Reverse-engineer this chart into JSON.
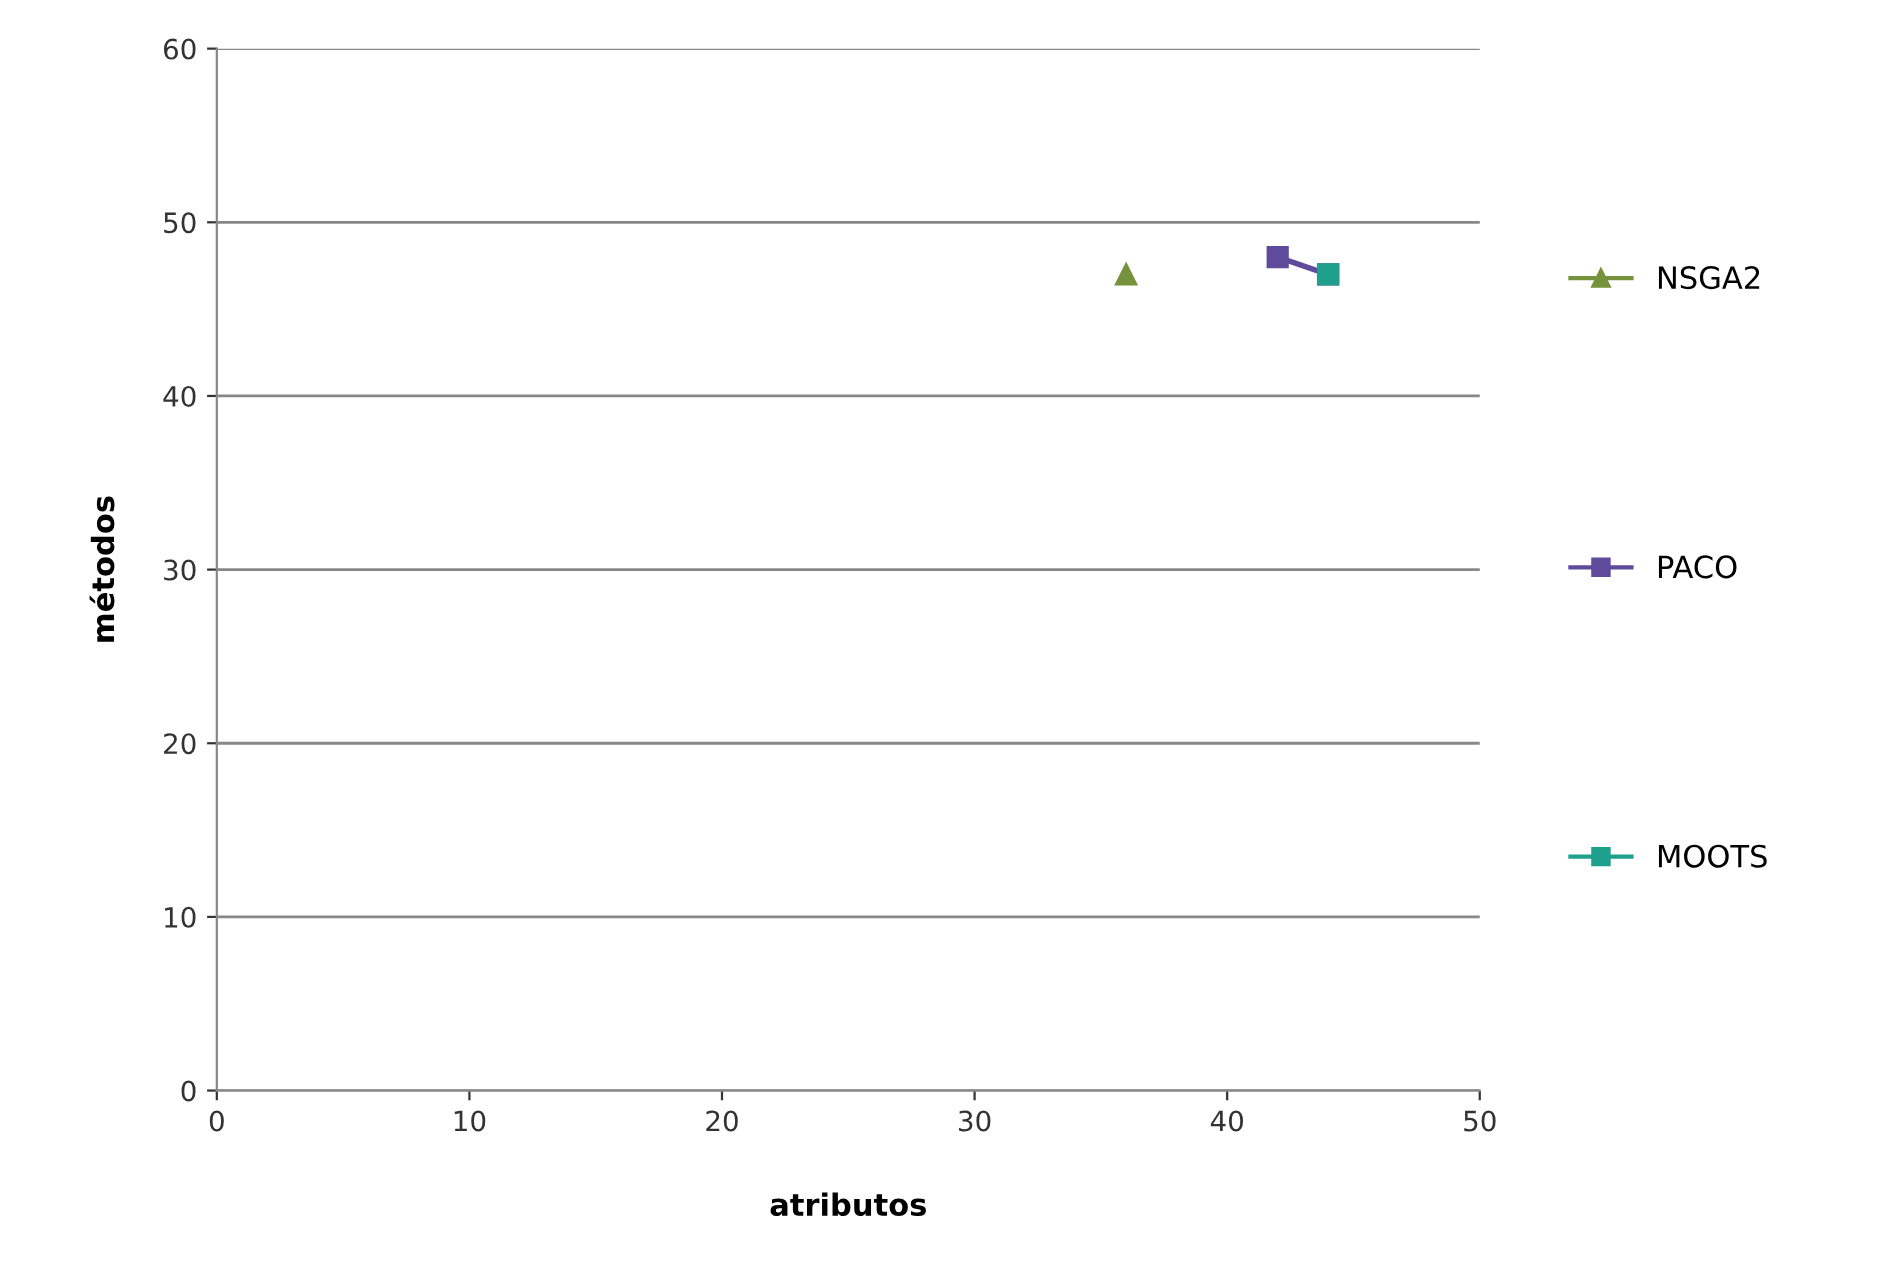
{
  "chart_data": {
    "type": "scatter",
    "xlabel": "atributos",
    "ylabel": "métodos",
    "series": [
      {
        "name": "NSGA2",
        "color": "#76923c",
        "marker": "triangle",
        "x": [
          36
        ],
        "values": [
          47
        ]
      },
      {
        "name": "PACO",
        "color": "#604a9b",
        "marker": "square",
        "type": "line",
        "x": [
          42,
          44
        ],
        "values": [
          48,
          47
        ]
      },
      {
        "name": "MOOTS",
        "color": "#1fa08c",
        "marker": "square",
        "x": [
          44
        ],
        "values": [
          47
        ]
      }
    ],
    "xlim": [
      0,
      50
    ],
    "xticks": [
      0,
      10,
      20,
      30,
      40,
      50
    ],
    "ylim": [
      0,
      60
    ],
    "yticks": [
      0,
      10,
      20,
      30,
      40,
      50,
      60
    ],
    "grid": "y",
    "legend": "right"
  }
}
